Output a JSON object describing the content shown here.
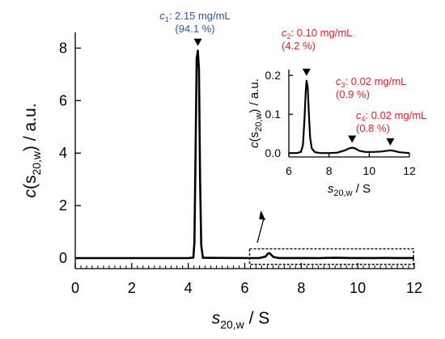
{
  "chart_data": [
    {
      "type": "line",
      "panel": "main",
      "xlabel": {
        "var": "s",
        "sub": "20,w",
        "unit": " / S"
      },
      "ylabel": {
        "var": "c",
        "open": "(s",
        "sub": "20,w",
        "close": ") / a.u."
      },
      "xlim": [
        0,
        12
      ],
      "ylim": [
        -0.4,
        8.6
      ],
      "xticks": [
        0,
        2,
        4,
        6,
        8,
        10,
        12
      ],
      "yticks": [
        0,
        2,
        4,
        6,
        8
      ],
      "x_minor_step": 0.2,
      "series": [
        {
          "x": [
            0,
            4.0,
            4.18,
            4.22,
            4.26,
            4.3,
            4.34,
            4.38,
            4.42,
            4.46,
            4.52,
            6.5,
            6.74,
            6.82,
            6.88,
            6.94,
            7.02,
            7.2,
            8.6,
            9.2,
            9.8,
            10.6,
            11.0,
            11.4,
            12.0
          ],
          "y": [
            0,
            0,
            0.02,
            0.6,
            4.0,
            7.6,
            7.9,
            7.2,
            3.0,
            0.5,
            0.01,
            0,
            0.06,
            0.17,
            0.19,
            0.12,
            0.04,
            0.005,
            0.0,
            0.014,
            0.005,
            0.004,
            0.007,
            0.003,
            0.0
          ]
        }
      ],
      "zoom_box": {
        "x": [
          6.0,
          12.0
        ],
        "y": [
          -0.3,
          0.6
        ]
      },
      "annotations": [
        {
          "peak_x": 4.34,
          "peak_y": 7.9,
          "label_var": "c",
          "label_sub": "1",
          "line1": ": 2.15 mg/mL",
          "line2": "(94.1 %)",
          "color": "#2b4fe0"
        }
      ]
    },
    {
      "type": "line",
      "panel": "inset",
      "xlabel": {
        "var": "s",
        "sub": "20,w",
        "unit": " / S"
      },
      "ylabel": {
        "var": "c",
        "open": "(s",
        "sub": "20,w",
        "close": ") / a.u."
      },
      "xlim": [
        6,
        12
      ],
      "ylim": [
        -0.01,
        0.215
      ],
      "xticks": [
        6,
        8,
        10,
        12
      ],
      "yticks": [
        0.0,
        0.1,
        0.2
      ],
      "ytick_labels": [
        "0.0",
        "0.1",
        "0.2"
      ],
      "series": [
        {
          "x": [
            6.0,
            6.4,
            6.6,
            6.7,
            6.78,
            6.84,
            6.88,
            6.94,
            7.0,
            7.06,
            7.14,
            7.3,
            7.6,
            8.0,
            8.4,
            8.8,
            9.0,
            9.15,
            9.3,
            9.5,
            9.8,
            10.2,
            10.6,
            10.9,
            11.05,
            11.2,
            11.5,
            12.0
          ],
          "y": [
            0.0,
            0.0,
            0.003,
            0.02,
            0.09,
            0.16,
            0.186,
            0.17,
            0.1,
            0.04,
            0.012,
            0.002,
            0.0,
            0.0,
            0.001,
            0.007,
            0.012,
            0.014,
            0.012,
            0.006,
            0.003,
            0.003,
            0.004,
            0.006,
            0.007,
            0.006,
            0.002,
            0.0
          ]
        }
      ],
      "annotations": [
        {
          "peak_x": 6.88,
          "peak_y": 0.186,
          "label_var": "c",
          "label_sub": "2",
          "line1": ": 0.10 mg/mL",
          "line2": "(4.2 %)",
          "color": "#e8232a"
        },
        {
          "peak_x": 9.15,
          "peak_y": 0.014,
          "label_var": "c",
          "label_sub": "3",
          "line1": ": 0.02 mg/mL",
          "line2": "(0.9 %)",
          "color": "#e8232a"
        },
        {
          "peak_x": 11.05,
          "peak_y": 0.007,
          "label_var": "c",
          "label_sub": "4",
          "line1": ": 0.02 mg/mL",
          "line2": "(0.8 %)",
          "color": "#e8232a"
        }
      ]
    }
  ]
}
